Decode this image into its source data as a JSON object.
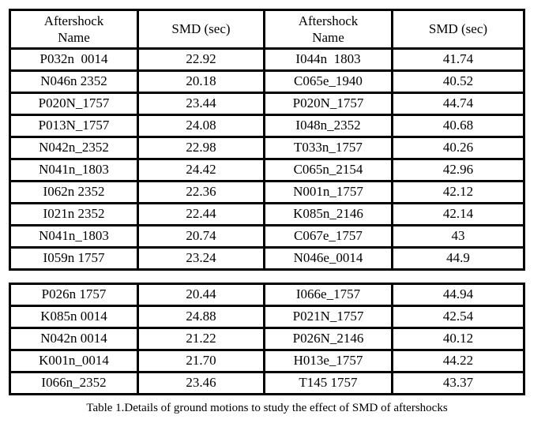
{
  "caption": "Table 1.Details of ground motions to study the effect of SMD of aftershocks",
  "tables": [
    {
      "headers": [
        "Aftershock\nName",
        "SMD (sec)",
        "Aftershock\nName",
        "SMD (sec)"
      ],
      "rows": [
        [
          "P032n  0014",
          "22.92",
          "I044n  1803",
          "41.74"
        ],
        [
          "N046n 2352",
          "20.18",
          "C065e_1940",
          "40.52"
        ],
        [
          "P020N_1757",
          "23.44",
          "P020N_1757",
          "44.74"
        ],
        [
          "P013N_1757",
          "24.08",
          "I048n_2352",
          "40.68"
        ],
        [
          "N042n_2352",
          "22.98",
          "T033n_1757",
          "40.26"
        ],
        [
          "N041n_1803",
          "24.42",
          "C065n_2154",
          "42.96"
        ],
        [
          "I062n 2352",
          "22.36",
          "N001n_1757",
          "42.12"
        ],
        [
          "I021n 2352",
          "22.44",
          "K085n_2146",
          "42.14"
        ],
        [
          "N041n_1803",
          "20.74",
          "C067e_1757",
          "43"
        ],
        [
          "I059n 1757",
          "23.24",
          "N046e_0014",
          "44.9"
        ]
      ]
    },
    {
      "headers": null,
      "rows": [
        [
          "P026n 1757",
          "20.44",
          "I066e_1757",
          "44.94"
        ],
        [
          "K085n 0014",
          "24.88",
          "P021N_1757",
          "42.54"
        ],
        [
          "N042n 0014",
          "21.22",
          "P026N_2146",
          "40.12"
        ],
        [
          "K001n_0014",
          "21.70",
          "H013e_1757",
          "44.22"
        ],
        [
          "I066n_2352",
          "23.46",
          "T145 1757",
          "43.37"
        ]
      ]
    }
  ],
  "chart_data": {
    "type": "table",
    "title": "Table 1.Details of ground motions to study the effect of SMD of aftershocks",
    "columns": [
      "Aftershock Name",
      "SMD (sec)",
      "Aftershock Name",
      "SMD (sec)"
    ],
    "group1_names": [
      "P032n 0014",
      "N046n 2352",
      "P020N_1757",
      "P013N_1757",
      "N042n_2352",
      "N041n_1803",
      "I062n 2352",
      "I021n 2352",
      "N041n_1803",
      "I059n 1757",
      "P026n 1757",
      "K085n 0014",
      "N042n 0014",
      "K001n_0014",
      "I066n_2352"
    ],
    "group1_smd_sec": [
      22.92,
      20.18,
      23.44,
      24.08,
      22.98,
      24.42,
      22.36,
      22.44,
      20.74,
      23.24,
      20.44,
      24.88,
      21.22,
      21.7,
      23.46
    ],
    "group2_names": [
      "I044n 1803",
      "C065e_1940",
      "P020N_1757",
      "I048n_2352",
      "T033n_1757",
      "C065n_2154",
      "N001n_1757",
      "K085n_2146",
      "C067e_1757",
      "N046e_0014",
      "I066e_1757",
      "P021N_1757",
      "P026N_2146",
      "H013e_1757",
      "T145 1757"
    ],
    "group2_smd_sec": [
      41.74,
      40.52,
      44.74,
      40.68,
      40.26,
      42.96,
      42.12,
      42.14,
      43,
      44.9,
      44.94,
      42.54,
      40.12,
      44.22,
      43.37
    ]
  }
}
